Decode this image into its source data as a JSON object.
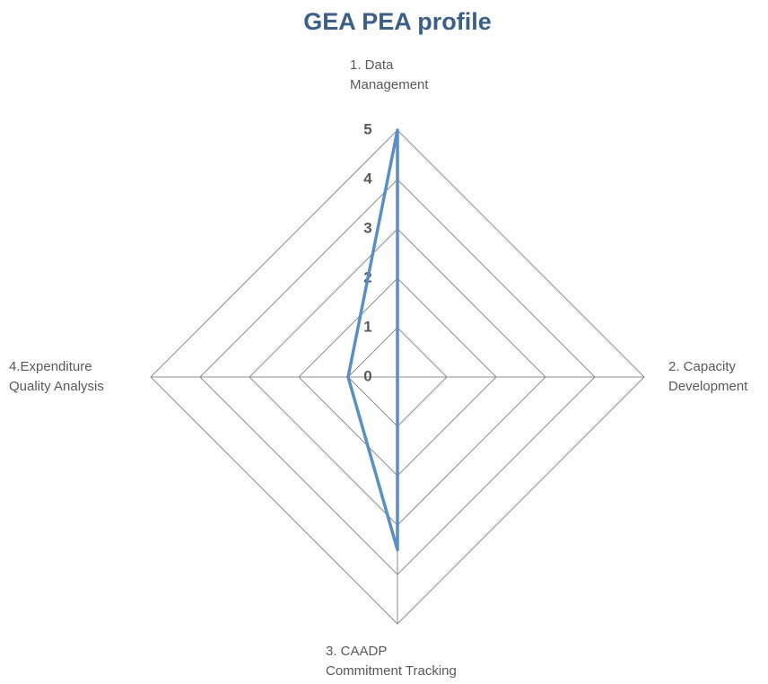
{
  "chart_data": {
    "type": "radar",
    "title": "GEA PEA profile",
    "categories": [
      "1. Data\nManagement",
      "2. Capacity\nDevelopment",
      "3. CAADP\nCommitment Tracking",
      "4.Expenditure\nQuality Analysis"
    ],
    "values": [
      5,
      0,
      3.5,
      1
    ],
    "color": "#5b8ec4",
    "rlim": [
      0,
      5
    ],
    "rticks": [
      0,
      1,
      2,
      3,
      4,
      5
    ],
    "grid": true
  }
}
